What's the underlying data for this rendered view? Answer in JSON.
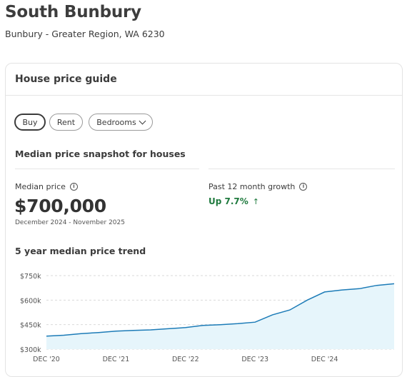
{
  "header": {
    "suburb": "South Bunbury",
    "region": "Bunbury - Greater Region, WA 6230"
  },
  "guide": {
    "title": "House price guide",
    "filters": {
      "buy": "Buy",
      "rent": "Rent",
      "bedrooms": "Bedrooms"
    },
    "snapshot_title": "Median price snapshot for houses",
    "median": {
      "label": "Median price",
      "value": "$700,000",
      "period": "December 2024 - November 2025"
    },
    "growth": {
      "label": "Past 12 month growth",
      "value": "Up 7.7%"
    },
    "trend_title": "5 year median price trend"
  },
  "chart_data": {
    "type": "area",
    "x": [
      "Dec '20",
      "Mar '21",
      "Jun '21",
      "Sep '21",
      "Dec '21",
      "Mar '22",
      "Jun '22",
      "Sep '22",
      "Dec '22",
      "Mar '23",
      "Jun '23",
      "Sep '23",
      "Dec '23",
      "Mar '24",
      "Jun '24",
      "Sep '24",
      "Dec '24",
      "Mar '25",
      "Jun '25",
      "Sep '25",
      "Nov '25"
    ],
    "values": [
      380000,
      385000,
      395000,
      402000,
      410000,
      415000,
      418000,
      425000,
      432000,
      445000,
      450000,
      456000,
      465000,
      510000,
      540000,
      600000,
      650000,
      662000,
      670000,
      690000,
      700000
    ],
    "xticks": [
      "DEC '20",
      "DEC '21",
      "DEC '22",
      "DEC '23",
      "DEC '24"
    ],
    "xtick_index": [
      0,
      4,
      8,
      12,
      16
    ],
    "yticks": [
      "$750k",
      "$600k",
      "$450k",
      "$300k"
    ],
    "ytick_values": [
      750000,
      600000,
      450000,
      300000
    ],
    "ylim": [
      300000,
      750000
    ],
    "line_color": "#1c7bb7",
    "fill_color": "#e6f5fb"
  }
}
